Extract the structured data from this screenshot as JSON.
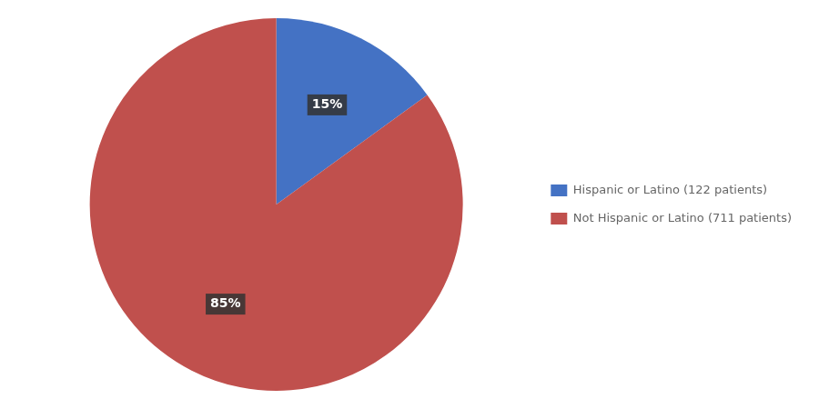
{
  "chart_data": {
    "type": "pie",
    "categories": [
      "Hispanic or Latino (122 patients)",
      "Not Hispanic or Latino (711 patients)"
    ],
    "values": [
      15,
      85
    ],
    "value_labels": [
      "15%",
      "85%"
    ],
    "colors": [
      "#4472C4",
      "#C0504D"
    ],
    "data_labels": true,
    "legend": "right"
  }
}
